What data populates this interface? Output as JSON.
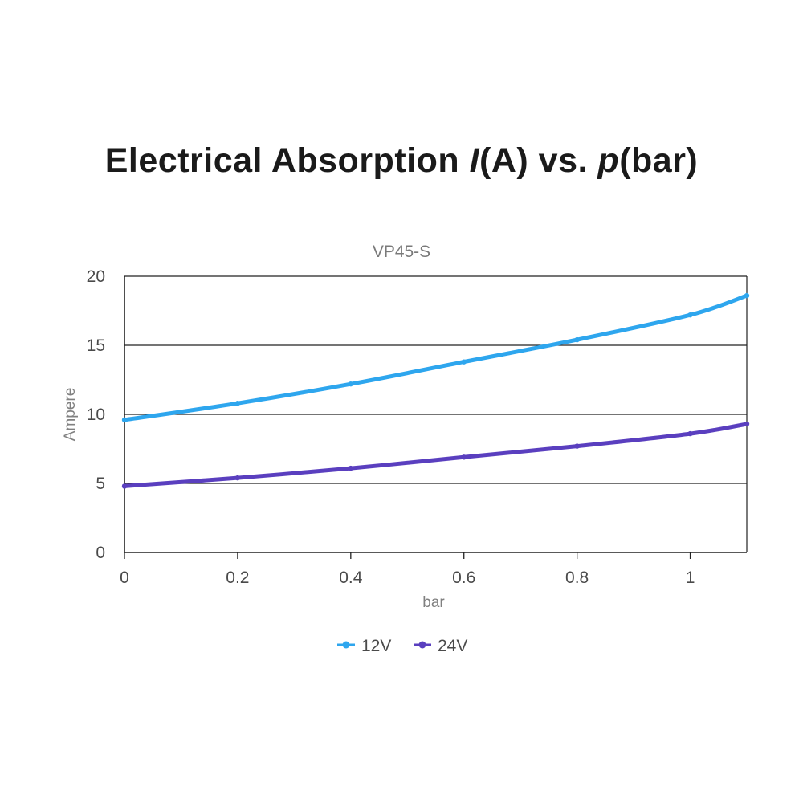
{
  "page": {
    "title_parts": [
      "Electrical Absorption ",
      "I",
      "(A) vs. ",
      "p",
      "(bar)"
    ]
  },
  "chart_data": {
    "type": "line",
    "title": "VP45-S",
    "xlabel": "bar",
    "ylabel": "Ampere",
    "xlim": [
      0,
      1.1
    ],
    "ylim": [
      0,
      20
    ],
    "x_ticks": [
      0,
      0.2,
      0.4,
      0.6,
      0.8,
      1
    ],
    "x_tick_labels": [
      "0",
      "0.2",
      "0.4",
      "0.6",
      "0.8",
      "1"
    ],
    "y_ticks": [
      0,
      5,
      10,
      15,
      20
    ],
    "y_tick_labels": [
      "0",
      "5",
      "10",
      "15",
      "20"
    ],
    "grid": "horizontal",
    "legend_position": "bottom",
    "series": [
      {
        "name": "12V",
        "color": "#2ea6ee",
        "x": [
          0,
          0.2,
          0.4,
          0.6,
          0.8,
          1,
          1.1
        ],
        "y": [
          9.6,
          10.8,
          12.2,
          13.8,
          15.4,
          17.2,
          18.6
        ]
      },
      {
        "name": "24V",
        "color": "#5a3fbf",
        "x": [
          0,
          0.2,
          0.4,
          0.6,
          0.8,
          1,
          1.1
        ],
        "y": [
          4.8,
          5.4,
          6.1,
          6.9,
          7.7,
          8.6,
          9.3
        ]
      }
    ]
  }
}
